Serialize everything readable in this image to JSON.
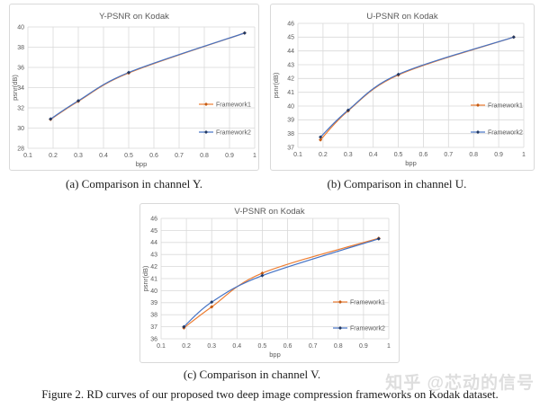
{
  "figure": {
    "caption_a": "(a) Comparison in channel Y.",
    "caption_b": "(b) Comparison in channel U.",
    "caption_c": "(c) Comparison in channel V.",
    "caption": "Figure 2. RD curves of our proposed two deep image compression frameworks on Kodak dataset.",
    "watermark": "知乎 @芯动的信号"
  },
  "colors": {
    "grid": "#d9d9d9",
    "axis_text": "#595959",
    "panel_border": "#d9d9d9",
    "watermark": "#dedede"
  },
  "chart_data": [
    {
      "type": "line",
      "title": "Y-PSNR on Kodak",
      "xlabel": "bpp",
      "ylabel": "psnr(dB)",
      "x": [
        0.19,
        0.3,
        0.5,
        0.96
      ],
      "series": [
        {
          "name": "Framework1",
          "color": "#ED7D31",
          "marker_color": "#C55A11",
          "values": [
            30.85,
            32.65,
            35.45,
            39.4
          ]
        },
        {
          "name": "Framework2",
          "color": "#4472C4",
          "marker_color": "#203864",
          "values": [
            30.9,
            32.7,
            35.5,
            39.4
          ]
        }
      ],
      "xlim": [
        0.1,
        1
      ],
      "xtick_step": 0.1,
      "ylim": [
        28,
        40
      ],
      "ytick_step": 2,
      "grid": true,
      "legend_position": "right-inside"
    },
    {
      "type": "line",
      "title": "U-PSNR on Kodak",
      "xlabel": "bpp",
      "ylabel": "psnr(dB)",
      "x": [
        0.19,
        0.3,
        0.5,
        0.96
      ],
      "series": [
        {
          "name": "Framework1",
          "color": "#ED7D31",
          "marker_color": "#C55A11",
          "values": [
            37.55,
            39.65,
            42.25,
            45.0
          ]
        },
        {
          "name": "Framework2",
          "color": "#4472C4",
          "marker_color": "#203864",
          "values": [
            37.75,
            39.7,
            42.3,
            45.0
          ]
        }
      ],
      "xlim": [
        0.1,
        1
      ],
      "xtick_step": 0.1,
      "ylim": [
        37,
        46
      ],
      "ytick_step": 1,
      "grid": true,
      "legend_position": "right-inside"
    },
    {
      "type": "line",
      "title": "V-PSNR on Kodak",
      "xlabel": "bpp",
      "ylabel": "psnr(dB)",
      "x": [
        0.19,
        0.3,
        0.5,
        0.96
      ],
      "series": [
        {
          "name": "Framework1",
          "color": "#ED7D31",
          "marker_color": "#C55A11",
          "values": [
            36.9,
            38.65,
            41.45,
            44.35
          ]
        },
        {
          "name": "Framework2",
          "color": "#4472C4",
          "marker_color": "#203864",
          "values": [
            37.0,
            39.05,
            41.25,
            44.3
          ]
        }
      ],
      "xlim": [
        0.1,
        1
      ],
      "xtick_step": 0.1,
      "ylim": [
        36,
        46
      ],
      "ytick_step": 1,
      "grid": true,
      "legend_position": "right-inside"
    }
  ]
}
